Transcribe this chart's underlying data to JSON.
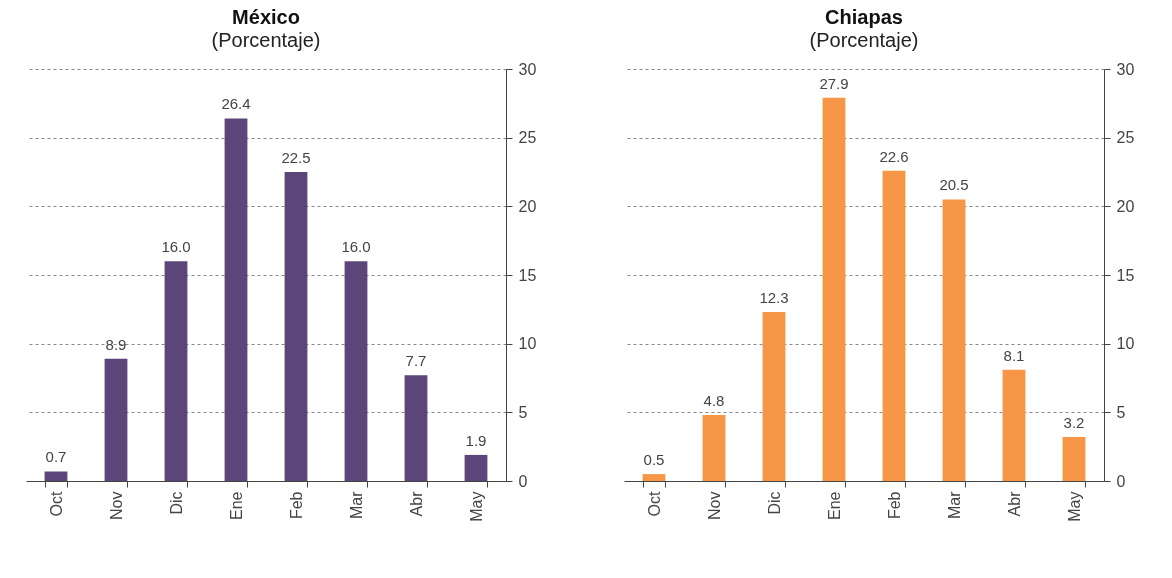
{
  "chart_data": [
    {
      "type": "bar",
      "title": "México",
      "subtitle": "(Porcentaje)",
      "categories": [
        "Oct",
        "Nov",
        "Dic",
        "Ene",
        "Feb",
        "Mar",
        "Abr",
        "May"
      ],
      "values": [
        0.7,
        8.9,
        16.0,
        26.4,
        22.5,
        16.0,
        7.7,
        1.9
      ],
      "value_labels": [
        "0.7",
        "8.9",
        "16.0",
        "26.4",
        "22.5",
        "16.0",
        "7.7",
        "1.9"
      ],
      "color": "#5c4579",
      "ylim": [
        0,
        30
      ],
      "yticks": [
        0,
        5,
        10,
        15,
        20,
        25,
        30
      ],
      "grid": "y"
    },
    {
      "type": "bar",
      "title": "Chiapas",
      "subtitle": "(Porcentaje)",
      "categories": [
        "Oct",
        "Nov",
        "Dic",
        "Ene",
        "Feb",
        "Mar",
        "Abr",
        "May"
      ],
      "values": [
        0.5,
        4.8,
        12.3,
        27.9,
        22.6,
        20.5,
        8.1,
        3.2
      ],
      "value_labels": [
        "0.5",
        "4.8",
        "12.3",
        "27.9",
        "22.6",
        "20.5",
        "8.1",
        "3.2"
      ],
      "color": "#f79646",
      "ylim": [
        0,
        30
      ],
      "yticks": [
        0,
        5,
        10,
        15,
        20,
        25,
        30
      ],
      "grid": "y"
    }
  ]
}
